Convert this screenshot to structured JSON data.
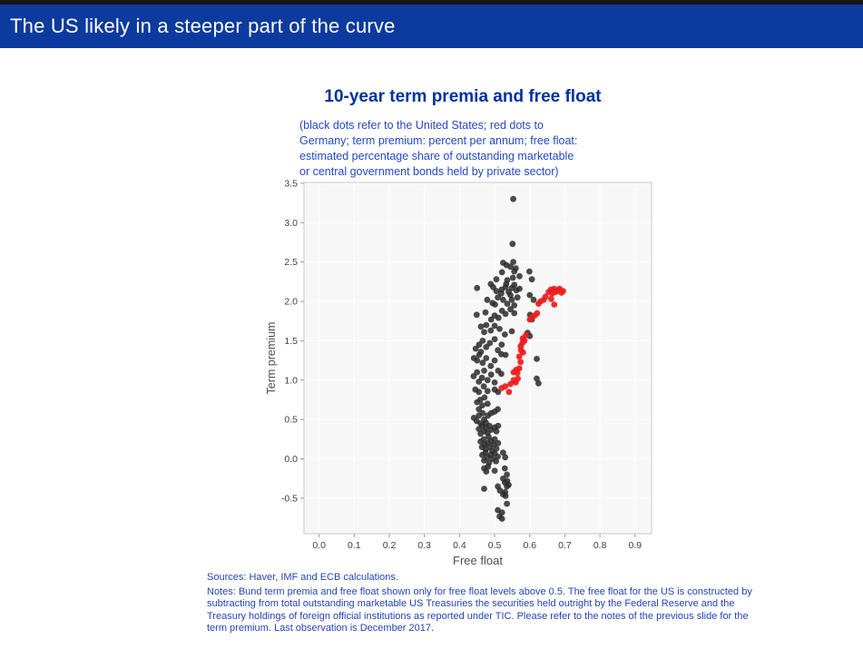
{
  "header": {
    "title": "The US likely in a steeper part of the curve"
  },
  "footer": {
    "sources": "Sources: Haver, IMF and ECB calculations.",
    "notes": "Notes: Bund term premia and free float shown only for free float levels above 0.5. The free float for the US is constructed by\nsubtracting from total outstanding marketable US Treasuries the securities held outright by the Federal Reserve and the\nTreasury holdings  of foreign official institutions as reported under TIC. Please refer to the notes of the previous slide for the\nterm premium. Last observation is December 2017."
  },
  "colors": {
    "header_bar": "#0c3a9e",
    "header_text": "#ffffff",
    "chart_title_blue": "#0031a0",
    "body_text_blue": "#2244bb",
    "us_dot": "#2b2b2b",
    "germany_dot": "#ee1b1b"
  },
  "chart_data": {
    "type": "scatter",
    "title": "10-year term premia and free float",
    "subtitle": "(black dots refer to the United States; red dots to\nGermany; term premium: percent per annum; free float:\nestimated percentage share of outstanding marketable\nor central government bonds held by private sector)",
    "xlabel": "Free float",
    "ylabel": "Term premium",
    "xlim": [
      -0.043,
      0.947
    ],
    "ylim": [
      -0.95,
      3.51
    ],
    "xticks": [
      0.0,
      0.1,
      0.2,
      0.3,
      0.4,
      0.5,
      0.6,
      0.7,
      0.8,
      0.9
    ],
    "yticks": [
      -0.5,
      0.0,
      0.5,
      1.0,
      1.5,
      2.0,
      2.5,
      3.0,
      3.5
    ],
    "grid": true,
    "panel_bg": "#f7f7f7",
    "panel_border": "#d0d0d0",
    "grid_color": "#ffffff",
    "tick_color": "#3f3f3f",
    "tick_mark_color": "#9a9a9a",
    "axis_label_color": "#4f4f4f",
    "legend": "none",
    "series": [
      {
        "name": "United States",
        "color": "#2b2b2b",
        "opacity": 0.85,
        "points": [
          [
            0.553,
            3.3
          ],
          [
            0.551,
            2.73
          ],
          [
            0.524,
            2.49
          ],
          [
            0.553,
            2.5
          ],
          [
            0.534,
            2.46
          ],
          [
            0.56,
            2.42
          ],
          [
            0.545,
            2.44
          ],
          [
            0.521,
            2.37
          ],
          [
            0.556,
            2.38
          ],
          [
            0.571,
            2.32
          ],
          [
            0.599,
            2.38
          ],
          [
            0.606,
            2.28
          ],
          [
            0.505,
            2.28
          ],
          [
            0.536,
            2.27
          ],
          [
            0.552,
            2.3
          ],
          [
            0.45,
            2.17
          ],
          [
            0.489,
            2.22
          ],
          [
            0.496,
            2.18
          ],
          [
            0.505,
            2.13
          ],
          [
            0.52,
            2.15
          ],
          [
            0.531,
            2.18
          ],
          [
            0.54,
            2.12
          ],
          [
            0.549,
            2.17
          ],
          [
            0.556,
            2.21
          ],
          [
            0.562,
            2.14
          ],
          [
            0.571,
            2.16
          ],
          [
            0.519,
            2.1
          ],
          [
            0.545,
            2.08
          ],
          [
            0.533,
            2.22
          ],
          [
            0.479,
            2.02
          ],
          [
            0.494,
            1.98
          ],
          [
            0.509,
            2.05
          ],
          [
            0.524,
            2.02
          ],
          [
            0.536,
            1.97
          ],
          [
            0.549,
            2.02
          ],
          [
            0.556,
            1.95
          ],
          [
            0.565,
            2.05
          ],
          [
            0.6,
            2.08
          ],
          [
            0.611,
            2.02
          ],
          [
            0.501,
            1.96
          ],
          [
            0.449,
            1.83
          ],
          [
            0.474,
            1.86
          ],
          [
            0.5,
            1.82
          ],
          [
            0.511,
            1.79
          ],
          [
            0.521,
            1.88
          ],
          [
            0.531,
            1.84
          ],
          [
            0.545,
            1.9
          ],
          [
            0.556,
            1.85
          ],
          [
            0.601,
            1.83
          ],
          [
            0.606,
            1.77
          ],
          [
            0.49,
            1.77
          ],
          [
            0.461,
            1.68
          ],
          [
            0.476,
            1.7
          ],
          [
            0.489,
            1.63
          ],
          [
            0.5,
            1.69
          ],
          [
            0.514,
            1.65
          ],
          [
            0.529,
            1.58
          ],
          [
            0.549,
            1.62
          ],
          [
            0.594,
            1.6
          ],
          [
            0.6,
            1.56
          ],
          [
            0.47,
            1.61
          ],
          [
            0.456,
            1.45
          ],
          [
            0.466,
            1.5
          ],
          [
            0.476,
            1.42
          ],
          [
            0.486,
            1.47
          ],
          [
            0.5,
            1.52
          ],
          [
            0.509,
            1.38
          ],
          [
            0.52,
            1.45
          ],
          [
            0.446,
            1.4
          ],
          [
            0.461,
            1.36
          ],
          [
            0.441,
            1.28
          ],
          [
            0.45,
            1.25
          ],
          [
            0.456,
            1.32
          ],
          [
            0.466,
            1.22
          ],
          [
            0.476,
            1.28
          ],
          [
            0.489,
            1.18
          ],
          [
            0.5,
            1.25
          ],
          [
            0.519,
            1.33
          ],
          [
            0.531,
            1.32
          ],
          [
            0.62,
            1.27
          ],
          [
            0.44,
            1.05
          ],
          [
            0.45,
            1.1
          ],
          [
            0.455,
            0.98
          ],
          [
            0.464,
            1.03
          ],
          [
            0.47,
            1.12
          ],
          [
            0.48,
            1.0
          ],
          [
            0.49,
            1.07
          ],
          [
            0.5,
            0.97
          ],
          [
            0.51,
            1.12
          ],
          [
            0.62,
            1.02
          ],
          [
            0.625,
            0.96
          ],
          [
            0.519,
            1.08
          ],
          [
            0.445,
            0.88
          ],
          [
            0.455,
            0.85
          ],
          [
            0.469,
            0.92
          ],
          [
            0.48,
            0.86
          ],
          [
            0.5,
            0.88
          ],
          [
            0.51,
            0.85
          ],
          [
            0.45,
            0.72
          ],
          [
            0.459,
            0.75
          ],
          [
            0.465,
            0.68
          ],
          [
            0.471,
            0.78
          ],
          [
            0.48,
            0.7
          ],
          [
            0.455,
            0.63
          ],
          [
            0.441,
            0.52
          ],
          [
            0.449,
            0.48
          ],
          [
            0.455,
            0.55
          ],
          [
            0.46,
            0.45
          ],
          [
            0.466,
            0.58
          ],
          [
            0.47,
            0.5
          ],
          [
            0.475,
            0.46
          ],
          [
            0.481,
            0.55
          ],
          [
            0.49,
            0.58
          ],
          [
            0.5,
            0.6
          ],
          [
            0.509,
            0.63
          ],
          [
            0.455,
            0.38
          ],
          [
            0.46,
            0.32
          ],
          [
            0.465,
            0.42
          ],
          [
            0.47,
            0.35
          ],
          [
            0.475,
            0.4
          ],
          [
            0.48,
            0.33
          ],
          [
            0.485,
            0.42
          ],
          [
            0.49,
            0.37
          ],
          [
            0.5,
            0.4
          ],
          [
            0.505,
            0.35
          ],
          [
            0.51,
            0.42
          ],
          [
            0.46,
            0.22
          ],
          [
            0.464,
            0.15
          ],
          [
            0.469,
            0.25
          ],
          [
            0.472,
            0.18
          ],
          [
            0.475,
            0.12
          ],
          [
            0.48,
            0.2
          ],
          [
            0.483,
            0.28
          ],
          [
            0.487,
            0.15
          ],
          [
            0.49,
            0.23
          ],
          [
            0.493,
            0.1
          ],
          [
            0.497,
            0.18
          ],
          [
            0.5,
            0.25
          ],
          [
            0.505,
            0.13
          ],
          [
            0.51,
            0.2
          ],
          [
            0.465,
            0.05
          ],
          [
            0.47,
            -0.02
          ],
          [
            0.474,
            0.08
          ],
          [
            0.479,
            0.02
          ],
          [
            0.484,
            -0.05
          ],
          [
            0.489,
            0.05
          ],
          [
            0.494,
            0.0
          ],
          [
            0.5,
            0.07
          ],
          [
            0.504,
            -0.03
          ],
          [
            0.509,
            0.03
          ],
          [
            0.524,
            0.08
          ],
          [
            0.53,
            0.02
          ],
          [
            0.47,
            -0.12
          ],
          [
            0.476,
            -0.16
          ],
          [
            0.481,
            -0.1
          ],
          [
            0.5,
            -0.15
          ],
          [
            0.529,
            -0.12
          ],
          [
            0.535,
            -0.2
          ],
          [
            0.524,
            -0.25
          ],
          [
            0.529,
            -0.3
          ],
          [
            0.535,
            -0.35
          ],
          [
            0.53,
            -0.42
          ],
          [
            0.536,
            -0.28
          ],
          [
            0.54,
            -0.33
          ],
          [
            0.47,
            -0.38
          ],
          [
            0.509,
            -0.35
          ],
          [
            0.515,
            -0.4
          ],
          [
            0.524,
            -0.45
          ],
          [
            0.531,
            -0.47
          ],
          [
            0.535,
            -0.57
          ],
          [
            0.509,
            -0.65
          ],
          [
            0.521,
            -0.68
          ],
          [
            0.514,
            -0.73
          ],
          [
            0.521,
            -0.76
          ]
        ]
      },
      {
        "name": "Germany",
        "color": "#ee1b1b",
        "opacity": 0.92,
        "points": [
          [
            0.541,
            0.85
          ],
          [
            0.52,
            0.9
          ],
          [
            0.53,
            0.92
          ],
          [
            0.545,
            0.95
          ],
          [
            0.554,
            1.0
          ],
          [
            0.56,
            0.97
          ],
          [
            0.566,
            1.02
          ],
          [
            0.554,
            1.1
          ],
          [
            0.561,
            1.13
          ],
          [
            0.57,
            1.15
          ],
          [
            0.565,
            1.09
          ],
          [
            0.574,
            1.23
          ],
          [
            0.57,
            1.3
          ],
          [
            0.575,
            1.38
          ],
          [
            0.581,
            1.35
          ],
          [
            0.574,
            1.43
          ],
          [
            0.579,
            1.47
          ],
          [
            0.585,
            1.5
          ],
          [
            0.58,
            1.53
          ],
          [
            0.589,
            1.57
          ],
          [
            0.6,
            1.77
          ],
          [
            0.606,
            1.8
          ],
          [
            0.614,
            1.82
          ],
          [
            0.621,
            1.85
          ],
          [
            0.625,
            1.97
          ],
          [
            0.631,
            2.0
          ],
          [
            0.64,
            2.02
          ],
          [
            0.645,
            2.06
          ],
          [
            0.654,
            2.12
          ],
          [
            0.66,
            2.15
          ],
          [
            0.664,
            2.1
          ],
          [
            0.669,
            2.16
          ],
          [
            0.674,
            2.12
          ],
          [
            0.68,
            2.14
          ],
          [
            0.685,
            2.16
          ],
          [
            0.69,
            2.11
          ],
          [
            0.695,
            2.13
          ],
          [
            0.661,
            2.03
          ],
          [
            0.67,
            1.96
          ]
        ]
      }
    ]
  }
}
